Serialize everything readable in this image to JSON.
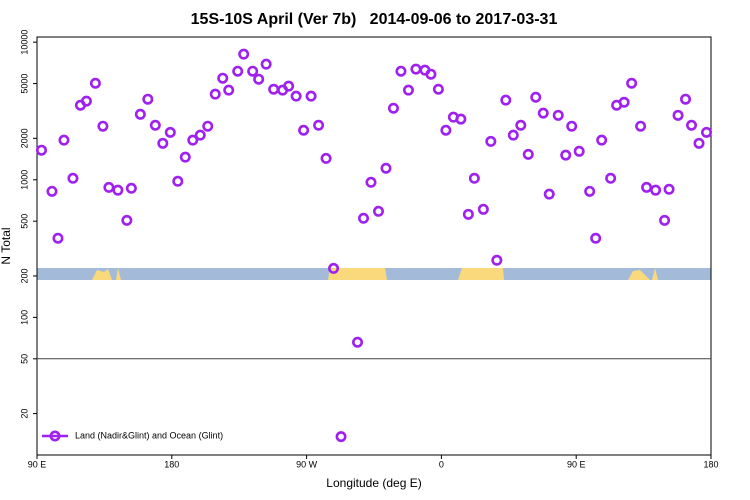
{
  "chart_data": {
    "type": "scatter",
    "title": "15S-10S April (Ver 7b)   2014-09-06 to 2017-03-31",
    "x_label": "Longitude (deg E)",
    "y_label": "N Total",
    "xlim": [
      90,
      540
    ],
    "xticks": [
      {
        "value": 90,
        "label": "90 E"
      },
      {
        "value": 180,
        "label": "180"
      },
      {
        "value": 270,
        "label": "90 W"
      },
      {
        "value": 360,
        "label": "0"
      },
      {
        "value": 450,
        "label": "90 E"
      },
      {
        "value": 540,
        "label": "180"
      }
    ],
    "ylim": [
      10,
      10900
    ],
    "y_log": true,
    "yticks": [
      20,
      50,
      100,
      200,
      500,
      1000,
      2000,
      5000,
      10000
    ],
    "reference_line": 50,
    "legend_position": "bottomleft",
    "series": [
      {
        "name": "Land (Nadir&Glint) and Ocean (Glint)",
        "color": "#a020f0",
        "x": [
          93,
          100,
          104,
          108,
          114,
          119,
          123,
          129,
          134,
          138,
          144,
          150,
          153,
          159,
          164,
          169,
          174,
          179,
          184,
          189,
          194,
          199,
          204,
          209,
          214,
          218,
          224,
          228,
          234,
          238,
          243,
          248,
          254,
          258,
          263,
          268,
          273,
          278,
          283,
          288,
          293,
          304,
          308,
          313,
          318,
          323,
          328,
          333,
          338,
          343,
          349,
          353,
          358,
          363,
          368,
          373,
          378,
          382,
          388,
          393,
          397,
          403,
          408,
          413,
          418,
          423,
          428,
          432,
          438,
          443,
          447,
          452,
          459,
          463,
          467,
          473,
          477,
          482,
          487,
          493,
          497,
          503,
          509,
          512,
          518,
          523,
          527,
          532,
          537
        ],
        "values": [
          1640,
          824,
          376,
          1940,
          1025,
          3480,
          3730,
          5030,
          2450,
          880,
          840,
          507,
          867,
          2990,
          3850,
          2490,
          1840,
          2210,
          975,
          1460,
          1940,
          2110,
          2450,
          4190,
          5470,
          4480,
          6150,
          8180,
          6150,
          5380,
          6920,
          4550,
          4480,
          4790,
          4050,
          2290,
          4050,
          2490,
          1430,
          227,
          13.6,
          66,
          525,
          959,
          590,
          1213,
          3310,
          6150,
          4480,
          6370,
          6260,
          5850,
          4550,
          2290,
          2850,
          2760,
          561,
          1025,
          610,
          1900,
          260,
          3790,
          2110,
          2490,
          1530,
          3980,
          3050,
          786,
          2940,
          1510,
          2450,
          1610,
          824,
          376,
          1940,
          1025,
          3480,
          3660,
          5030,
          2450,
          880,
          840,
          507,
          853,
          2940,
          3850,
          2490,
          1840,
          2210
        ]
      }
    ]
  }
}
